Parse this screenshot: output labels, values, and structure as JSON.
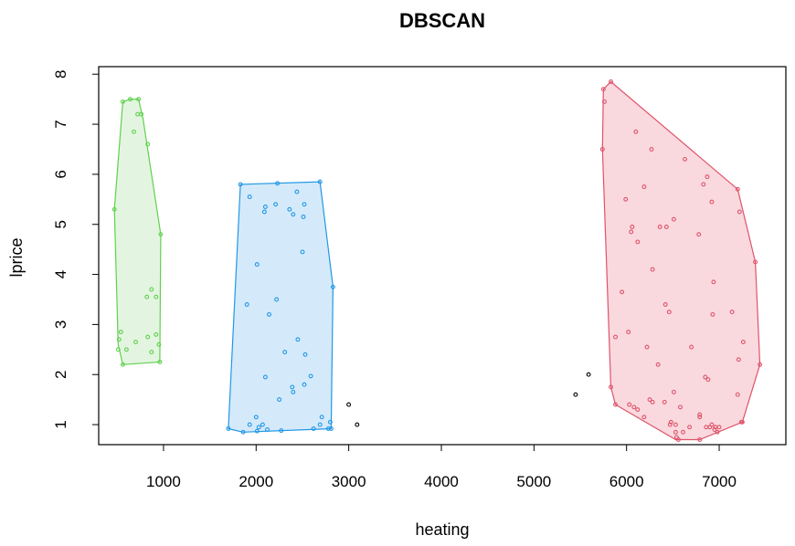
{
  "chart_data": {
    "type": "scatter",
    "title": "DBSCAN",
    "xlabel": "heating",
    "ylabel": "lprice",
    "xlim": [
      300,
      7720
    ],
    "ylim": [
      0.6,
      8.15
    ],
    "xticks": [
      1000,
      2000,
      3000,
      4000,
      5000,
      6000,
      7000
    ],
    "yticks": [
      1,
      2,
      3,
      4,
      5,
      6,
      7,
      8
    ],
    "grid": false,
    "legend": "none",
    "marker": "open-circle",
    "series": [
      {
        "color": "#61D04F",
        "fill": "#E3F5E0",
        "hull": [
          [
            640,
            7.5
          ],
          [
            730,
            7.5
          ],
          [
            780,
            7.1
          ],
          [
            970,
            4.8
          ],
          [
            960,
            2.25
          ],
          [
            560,
            2.2
          ],
          [
            510,
            2.6
          ],
          [
            470,
            5.3
          ],
          [
            560,
            7.45
          ]
        ],
        "points": [
          [
            560,
            7.45
          ],
          [
            640,
            7.5
          ],
          [
            730,
            7.5
          ],
          [
            720,
            7.2
          ],
          [
            760,
            7.2
          ],
          [
            680,
            6.85
          ],
          [
            830,
            6.6
          ],
          [
            470,
            5.3
          ],
          [
            970,
            4.8
          ],
          [
            870,
            3.7
          ],
          [
            820,
            3.55
          ],
          [
            920,
            3.55
          ],
          [
            540,
            2.85
          ],
          [
            520,
            2.7
          ],
          [
            700,
            2.65
          ],
          [
            830,
            2.75
          ],
          [
            920,
            2.8
          ],
          [
            950,
            2.6
          ],
          [
            510,
            2.5
          ],
          [
            600,
            2.5
          ],
          [
            870,
            2.45
          ],
          [
            560,
            2.2
          ],
          [
            960,
            2.25
          ]
        ]
      },
      {
        "color": "#2297E6",
        "fill": "#D4EAFA",
        "hull": [
          [
            2690,
            5.85
          ],
          [
            2830,
            3.75
          ],
          [
            2810,
            0.92
          ],
          [
            1860,
            0.85
          ],
          [
            1700,
            0.92
          ],
          [
            1830,
            5.8
          ]
        ],
        "points": [
          [
            1830,
            5.8
          ],
          [
            2230,
            5.82
          ],
          [
            2690,
            5.85
          ],
          [
            2440,
            5.65
          ],
          [
            1930,
            5.55
          ],
          [
            2100,
            5.35
          ],
          [
            2210,
            5.4
          ],
          [
            2520,
            5.4
          ],
          [
            2090,
            5.25
          ],
          [
            2360,
            5.3
          ],
          [
            2400,
            5.2
          ],
          [
            2510,
            5.15
          ],
          [
            2500,
            4.45
          ],
          [
            2010,
            4.2
          ],
          [
            2830,
            3.75
          ],
          [
            2220,
            3.5
          ],
          [
            1900,
            3.4
          ],
          [
            2140,
            3.2
          ],
          [
            2450,
            2.7
          ],
          [
            2310,
            2.45
          ],
          [
            2530,
            2.4
          ],
          [
            2100,
            1.95
          ],
          [
            2590,
            1.97
          ],
          [
            2390,
            1.75
          ],
          [
            2520,
            1.8
          ],
          [
            2250,
            1.5
          ],
          [
            2400,
            1.65
          ],
          [
            2710,
            1.15
          ],
          [
            2000,
            1.15
          ],
          [
            2800,
            1.05
          ],
          [
            1930,
            1.0
          ],
          [
            2030,
            0.95
          ],
          [
            2070,
            1.0
          ],
          [
            2690,
            1.0
          ],
          [
            2620,
            0.92
          ],
          [
            2780,
            0.92
          ],
          [
            2810,
            0.92
          ],
          [
            1700,
            0.92
          ],
          [
            2120,
            0.9
          ],
          [
            2270,
            0.88
          ],
          [
            2010,
            0.87
          ],
          [
            1860,
            0.85
          ]
        ]
      },
      {
        "color": "#DF536B",
        "fill": "#F9D9DE",
        "hull": [
          [
            5830,
            7.85
          ],
          [
            7200,
            5.7
          ],
          [
            7390,
            4.25
          ],
          [
            7440,
            2.2
          ],
          [
            7250,
            1.05
          ],
          [
            6790,
            0.7
          ],
          [
            6530,
            0.7
          ],
          [
            5880,
            1.4
          ],
          [
            5830,
            1.75
          ],
          [
            5740,
            6.5
          ],
          [
            5750,
            7.7
          ]
        ],
        "points": [
          [
            5750,
            7.7
          ],
          [
            5830,
            7.85
          ],
          [
            5760,
            7.45
          ],
          [
            6100,
            6.85
          ],
          [
            6270,
            6.5
          ],
          [
            5740,
            6.5
          ],
          [
            6630,
            6.3
          ],
          [
            6870,
            5.95
          ],
          [
            6830,
            5.8
          ],
          [
            7200,
            5.7
          ],
          [
            6190,
            5.75
          ],
          [
            5990,
            5.5
          ],
          [
            6920,
            5.45
          ],
          [
            7220,
            5.25
          ],
          [
            6060,
            4.95
          ],
          [
            6050,
            4.85
          ],
          [
            6360,
            4.95
          ],
          [
            6510,
            5.1
          ],
          [
            6430,
            4.95
          ],
          [
            6780,
            4.8
          ],
          [
            6120,
            4.65
          ],
          [
            7390,
            4.25
          ],
          [
            6280,
            4.1
          ],
          [
            6940,
            3.85
          ],
          [
            5950,
            3.65
          ],
          [
            6420,
            3.4
          ],
          [
            6460,
            3.25
          ],
          [
            7140,
            3.25
          ],
          [
            6930,
            3.2
          ],
          [
            5880,
            2.75
          ],
          [
            6020,
            2.85
          ],
          [
            7260,
            2.65
          ],
          [
            6220,
            2.55
          ],
          [
            6700,
            2.55
          ],
          [
            7210,
            2.3
          ],
          [
            6340,
            2.2
          ],
          [
            7440,
            2.2
          ],
          [
            6880,
            1.9
          ],
          [
            6850,
            1.95
          ],
          [
            5830,
            1.75
          ],
          [
            6510,
            1.65
          ],
          [
            7200,
            1.6
          ],
          [
            6250,
            1.5
          ],
          [
            6280,
            1.45
          ],
          [
            6410,
            1.45
          ],
          [
            5880,
            1.4
          ],
          [
            6030,
            1.4
          ],
          [
            6080,
            1.35
          ],
          [
            6580,
            1.35
          ],
          [
            6120,
            1.3
          ],
          [
            6790,
            1.2
          ],
          [
            6790,
            1.15
          ],
          [
            6190,
            1.15
          ],
          [
            6480,
            1.05
          ],
          [
            6470,
            1.0
          ],
          [
            7240,
            1.05
          ],
          [
            7250,
            1.05
          ],
          [
            6530,
            1.0
          ],
          [
            6920,
            1.0
          ],
          [
            6960,
            0.95
          ],
          [
            7000,
            0.95
          ],
          [
            6860,
            0.95
          ],
          [
            6900,
            0.95
          ],
          [
            6950,
            0.9
          ],
          [
            6680,
            0.95
          ],
          [
            6980,
            0.85
          ],
          [
            6530,
            0.85
          ],
          [
            6610,
            0.85
          ],
          [
            6540,
            0.75
          ],
          [
            6560,
            0.7
          ],
          [
            6790,
            0.7
          ]
        ]
      },
      {
        "color": "#000000",
        "fill": "none",
        "hull": [],
        "points": [
          [
            3000,
            1.4
          ],
          [
            3090,
            1.0
          ],
          [
            5450,
            1.6
          ],
          [
            5590,
            2.0
          ]
        ]
      }
    ]
  }
}
